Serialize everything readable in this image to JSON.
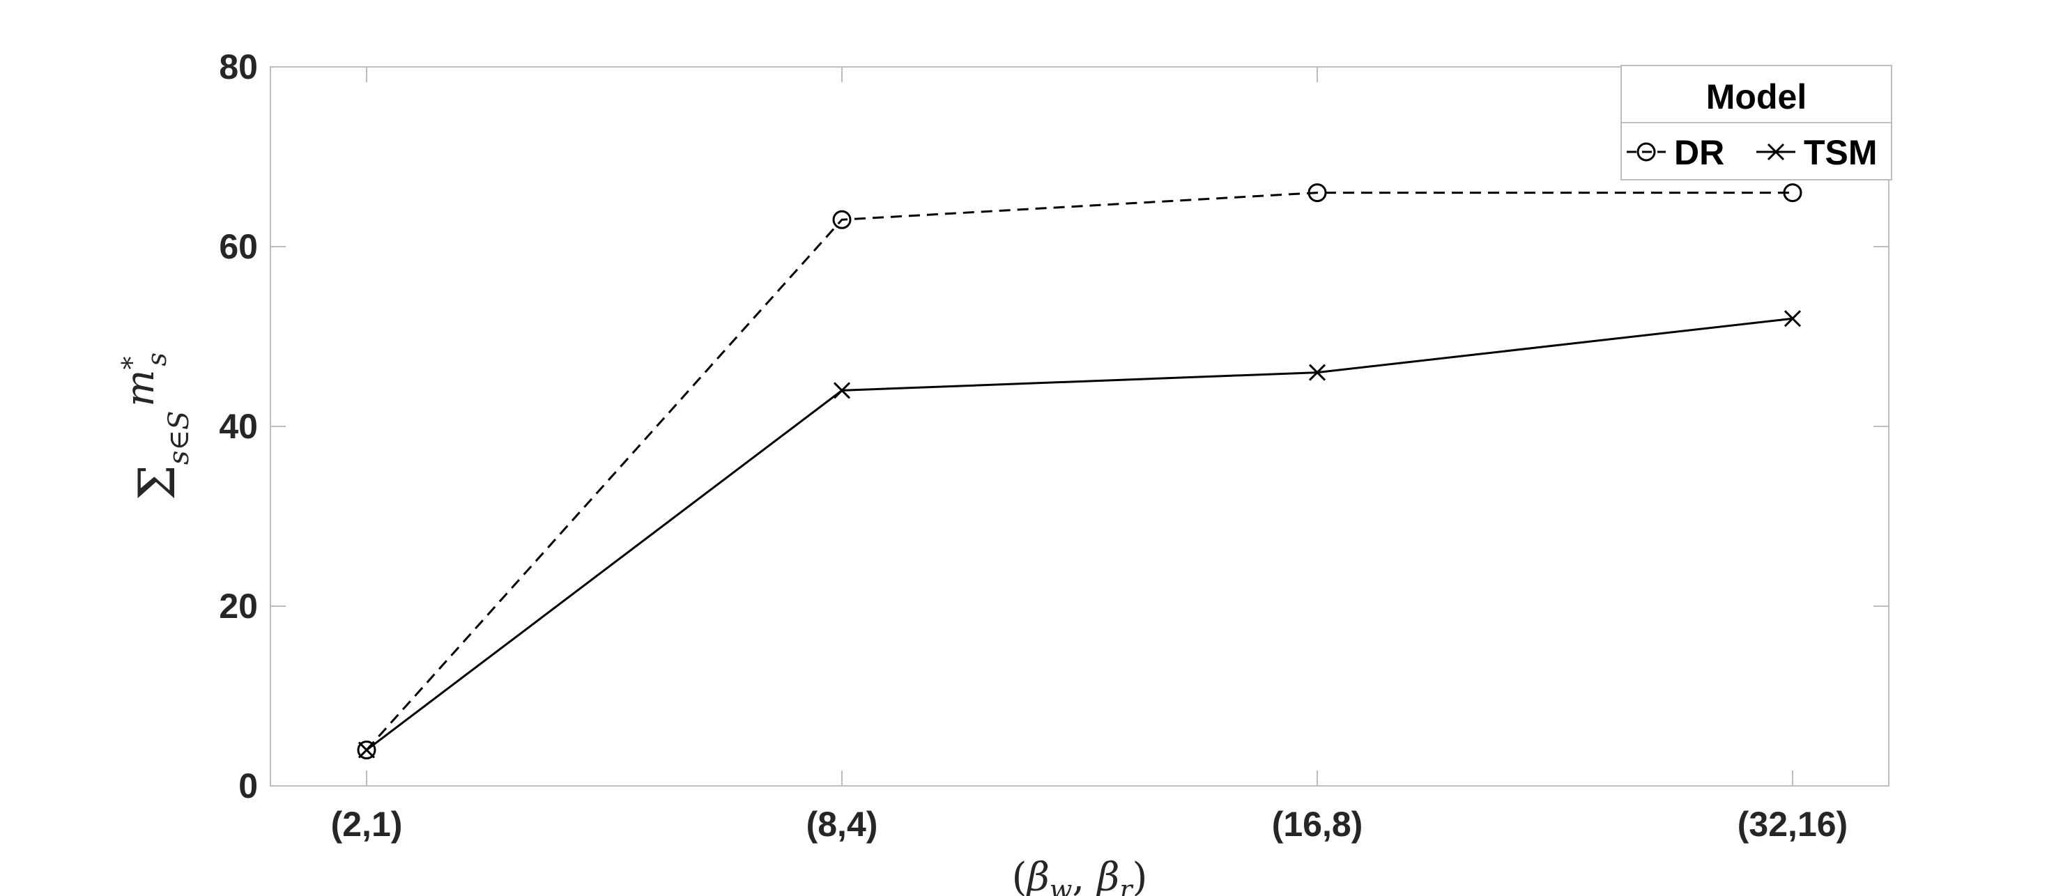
{
  "chart_data": {
    "type": "line",
    "categories": [
      "(2,1)",
      "(8,4)",
      "(16,8)",
      "(32,16)"
    ],
    "series": [
      {
        "name": "DR",
        "values": [
          4,
          63,
          66,
          66
        ],
        "line_style": "dashed",
        "marker": "circle",
        "color": "#000000"
      },
      {
        "name": "TSM",
        "values": [
          4,
          44,
          46,
          52
        ],
        "line_style": "solid",
        "marker": "x",
        "color": "#000000"
      }
    ],
    "ylim": [
      0,
      80
    ],
    "yticks": [
      0,
      20,
      40,
      60,
      80
    ],
    "xlabel": "(β_w, β_r)",
    "ylabel": "Σ_{s∈S} m*_s",
    "legend": {
      "title": "Model",
      "position": "top-right"
    },
    "grid": false
  }
}
